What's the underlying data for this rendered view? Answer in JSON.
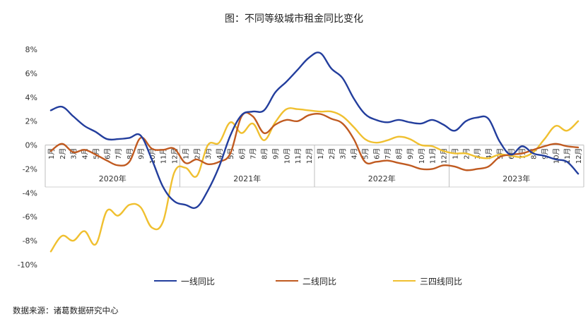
{
  "chart_data": {
    "type": "line",
    "title": "图：不同等级城市租金同比变化",
    "yaxis": {
      "min": -10,
      "max": 8,
      "step": 2,
      "unit": "%",
      "tick_labels": [
        "8%",
        "6%",
        "4%",
        "2%",
        "0%",
        "-2%",
        "-4%",
        "-6%",
        "-8%",
        "-10%"
      ]
    },
    "month_labels": [
      "1月",
      "2月",
      "3月",
      "4月",
      "5月",
      "6月",
      "7月",
      "8月",
      "9月",
      "10月",
      "11月",
      "12月"
    ],
    "years": [
      "2020年",
      "2021年",
      "2022年",
      "2023年"
    ],
    "grid": false,
    "legend_position": "bottom",
    "series": [
      {
        "name": "一线同比",
        "color": "#233e9d",
        "values": [
          2.9,
          3.2,
          2.4,
          1.6,
          1.1,
          0.5,
          0.5,
          0.6,
          0.8,
          -1.2,
          -3.5,
          -4.7,
          -5.0,
          -5.2,
          -3.8,
          -1.8,
          0.8,
          2.5,
          2.8,
          2.9,
          4.4,
          5.3,
          6.3,
          7.3,
          7.7,
          6.4,
          5.6,
          3.9,
          2.6,
          2.1,
          1.9,
          2.1,
          1.9,
          1.8,
          2.1,
          1.7,
          1.2,
          2.0,
          2.3,
          2.2,
          0.3,
          -0.8,
          -0.1,
          -0.7,
          -0.9,
          -1.2,
          -1.4,
          -2.4
        ]
      },
      {
        "name": "二线同比",
        "color": "#c05a20",
        "values": [
          -0.5,
          0.1,
          -0.6,
          -0.4,
          -0.8,
          -1.3,
          -1.7,
          -1.4,
          0.6,
          -0.3,
          -0.4,
          -0.3,
          -1.5,
          -1.2,
          -1.6,
          -1.4,
          -0.7,
          2.4,
          2.4,
          1.0,
          1.7,
          2.1,
          2.0,
          2.5,
          2.6,
          2.2,
          1.8,
          0.5,
          -1.4,
          -1.4,
          -1.3,
          -1.5,
          -1.7,
          -2.0,
          -2.0,
          -1.7,
          -1.8,
          -2.1,
          -2.0,
          -1.8,
          -1.0,
          -0.8,
          -0.7,
          -0.4,
          -0.1,
          0.1,
          -0.1,
          -0.2
        ]
      },
      {
        "name": "三四线同比",
        "color": "#f0c030",
        "values": [
          -8.9,
          -7.6,
          -8.0,
          -7.2,
          -8.3,
          -5.5,
          -5.9,
          -5.0,
          -5.2,
          -6.9,
          -6.4,
          -2.3,
          -1.9,
          -2.6,
          0.0,
          0.2,
          1.9,
          1.0,
          1.8,
          0.4,
          1.9,
          3.0,
          3.0,
          2.9,
          2.8,
          2.8,
          2.4,
          1.5,
          0.5,
          0.2,
          0.4,
          0.7,
          0.5,
          0.0,
          -0.1,
          -0.5,
          -0.7,
          -0.7,
          -1.0,
          -1.1,
          -0.8,
          -0.9,
          -1.0,
          -0.6,
          0.5,
          1.6,
          1.2,
          2.0
        ]
      }
    ]
  },
  "source": "数据来源：诸葛数据研究中心"
}
